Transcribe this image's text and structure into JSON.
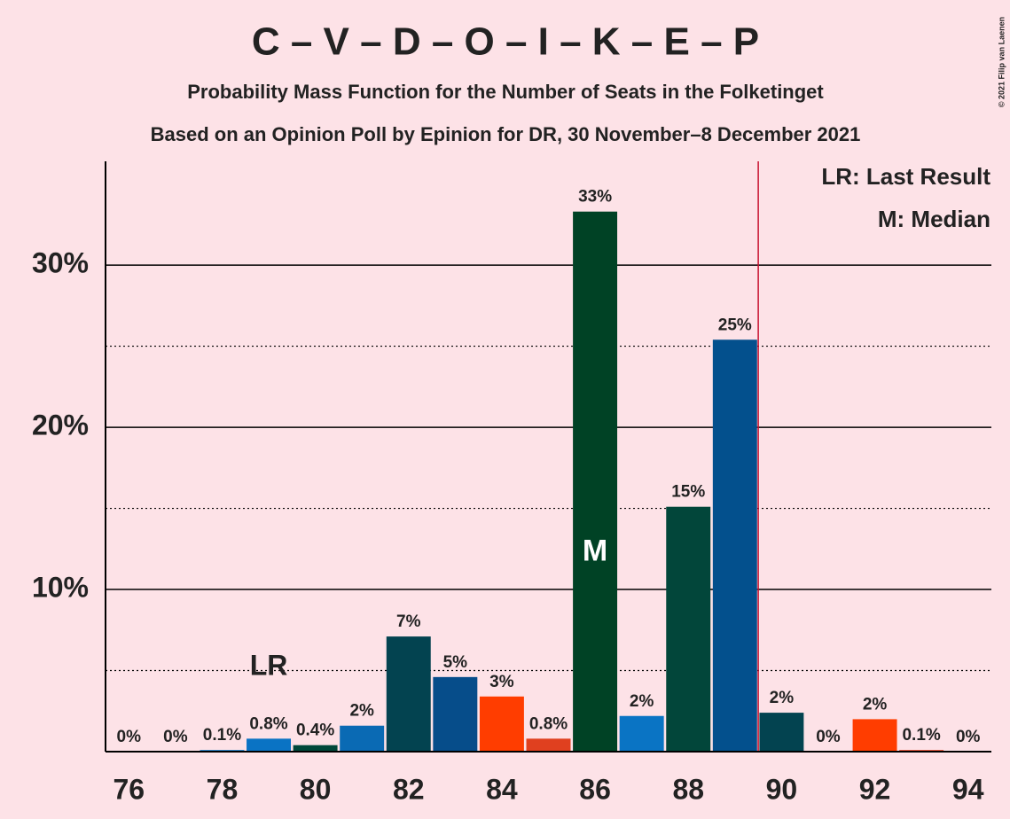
{
  "chart_data": {
    "type": "bar",
    "title": "C – V – D – O – I – K – E – P",
    "subtitle": "Probability Mass Function for the Number of Seats in the Folketinget",
    "subtitle2": "Based on an Opinion Poll by Epinion for DR, 30 November–8 December 2021",
    "copyright": "© 2021 Filip van Laenen",
    "x": [
      76,
      77,
      78,
      79,
      80,
      81,
      82,
      83,
      84,
      85,
      86,
      87,
      88,
      89,
      90,
      91,
      92,
      93,
      94
    ],
    "values": [
      0,
      0,
      0.1,
      0.8,
      0.4,
      1.6,
      7.1,
      4.6,
      3.4,
      0.8,
      33.3,
      2.2,
      15.1,
      25.4,
      2.4,
      0,
      2.0,
      0.1,
      0
    ],
    "value_labels": [
      "0%",
      "0%",
      "0.1%",
      "0.8%",
      "0.4%",
      "2%",
      "7%",
      "5%",
      "3%",
      "0.8%",
      "33%",
      "2%",
      "15%",
      "25%",
      "2%",
      "0%",
      "2%",
      "0.1%",
      "0%"
    ],
    "colors": [
      "#0a73c4",
      "#0a73c4",
      "#0a73c4",
      "#0a73c4",
      "#00483a",
      "#0a6ab4",
      "#034350",
      "#064d8a",
      "#ff3d00",
      "#e0401f",
      "#004225",
      "#0a74c4",
      "#02463a",
      "#03508d",
      "#034350",
      "#0a73c4",
      "#ff3d00",
      "#e03d1f",
      "#0a73c4"
    ],
    "xlim": [
      75.5,
      94.5
    ],
    "xticks": [
      76,
      78,
      80,
      82,
      84,
      86,
      88,
      90,
      92,
      94
    ],
    "ylim": [
      0,
      36.4
    ],
    "yticks": [
      {
        "value": 10,
        "label": "10%"
      },
      {
        "value": 20,
        "label": "20%"
      },
      {
        "value": 30,
        "label": "30%"
      }
    ],
    "minor_yticks": [
      5,
      15,
      25
    ],
    "grid": true,
    "majority_line": 89.5,
    "annotations": {
      "last_result": {
        "label": "LR",
        "x": 79
      },
      "median": {
        "label": "M",
        "x": 86
      }
    },
    "legend_texts": [
      "LR: Last Result",
      "M: Median"
    ]
  }
}
